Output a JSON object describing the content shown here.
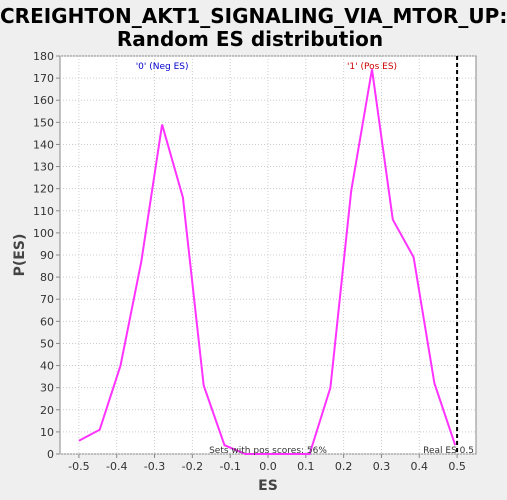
{
  "chart_data": {
    "type": "line",
    "title_line1": "CREIGHTON_AKT1_SIGNALING_VIA_MTOR_UP:",
    "title_line2": "Random ES distribution",
    "xlabel": "ES",
    "ylabel": "P(ES)",
    "xlim": [
      -0.55,
      0.55
    ],
    "ylim": [
      0,
      180
    ],
    "xticks": [
      -0.5,
      -0.4,
      -0.3,
      -0.2,
      -0.1,
      0.0,
      0.1,
      0.2,
      0.3,
      0.4,
      0.5
    ],
    "xtick_labels": [
      "-0.5",
      "-0.4",
      "-0.3",
      "-0.2",
      "-0.1",
      "0.0",
      "0.1",
      "0.2",
      "0.3",
      "0.4",
      "0.5"
    ],
    "yticks": [
      0,
      10,
      20,
      30,
      40,
      50,
      60,
      70,
      80,
      90,
      100,
      110,
      120,
      130,
      140,
      150,
      160,
      170,
      180
    ],
    "grid": true,
    "series": [
      {
        "color": "#ff33ff",
        "x": [
          -0.5,
          -0.445,
          -0.39,
          -0.335,
          -0.28,
          -0.225,
          -0.17,
          -0.115,
          -0.06,
          0.0,
          0.055,
          0.11,
          0.165,
          0.22,
          0.275,
          0.33,
          0.385,
          0.44,
          0.495
        ],
        "y": [
          6,
          11,
          40,
          87,
          149,
          116,
          31,
          4,
          0,
          0,
          0,
          0,
          30,
          119,
          174,
          106,
          89,
          32,
          4
        ]
      }
    ],
    "real_es": 0.5,
    "annotations": {
      "neg_label": "'0' (Neg ES)",
      "pos_label": "'1' (Pos ES)",
      "pos_scores": "Sets with pos scores: 56%",
      "real_es_label": "Real ES 0.5"
    },
    "colors": {
      "line": "#ff33ff",
      "neg": "#0000cc",
      "pos": "#cc0000",
      "grid": "#cccccc",
      "real_es": "#000000"
    }
  }
}
